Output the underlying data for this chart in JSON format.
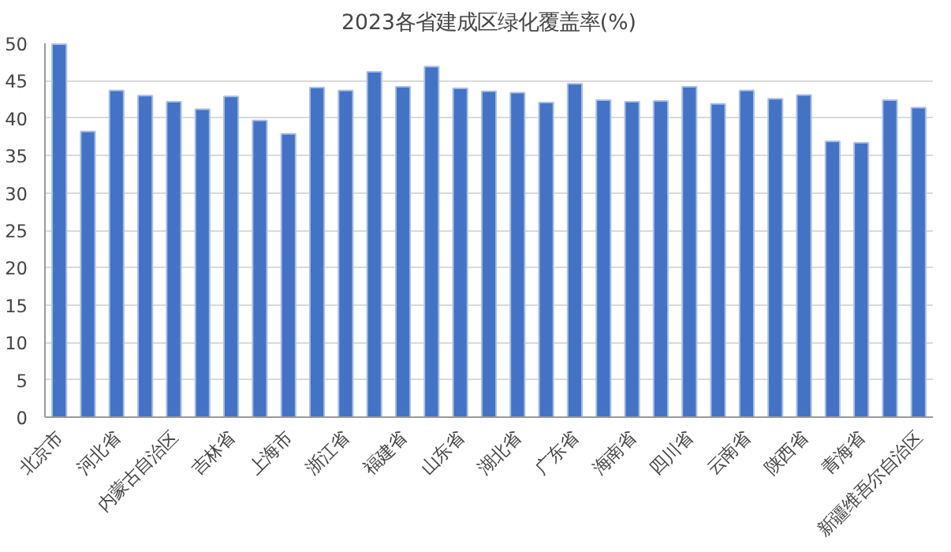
{
  "chart_data": {
    "type": "bar",
    "title": "2023各省建成区绿化覆盖率(%)",
    "categories": [
      "北京市",
      null,
      "河北省",
      null,
      "内蒙古自治区",
      null,
      "吉林省",
      null,
      "上海市",
      null,
      "浙江省",
      null,
      "福建省",
      null,
      "山东省",
      null,
      "湖北省",
      null,
      "广东省",
      null,
      "海南省",
      null,
      "四川省",
      null,
      "云南省",
      null,
      "陕西省",
      null,
      "青海省",
      null,
      "新疆维吾尔自治区"
    ],
    "values": [
      49.9,
      38.2,
      43.7,
      43.0,
      42.2,
      41.2,
      42.9,
      39.7,
      37.9,
      44.1,
      43.7,
      46.2,
      44.2,
      46.9,
      44.0,
      43.6,
      43.4,
      42.1,
      44.6,
      42.4,
      42.2,
      42.3,
      44.2,
      41.9,
      43.7,
      42.6,
      43.1,
      36.9,
      36.7,
      42.4,
      41.4
    ],
    "color": "#4472c4",
    "ylim": [
      0,
      50
    ],
    "yticks": [
      0,
      5,
      10,
      15,
      20,
      25,
      30,
      35,
      40,
      45,
      50
    ],
    "grid": "y"
  }
}
